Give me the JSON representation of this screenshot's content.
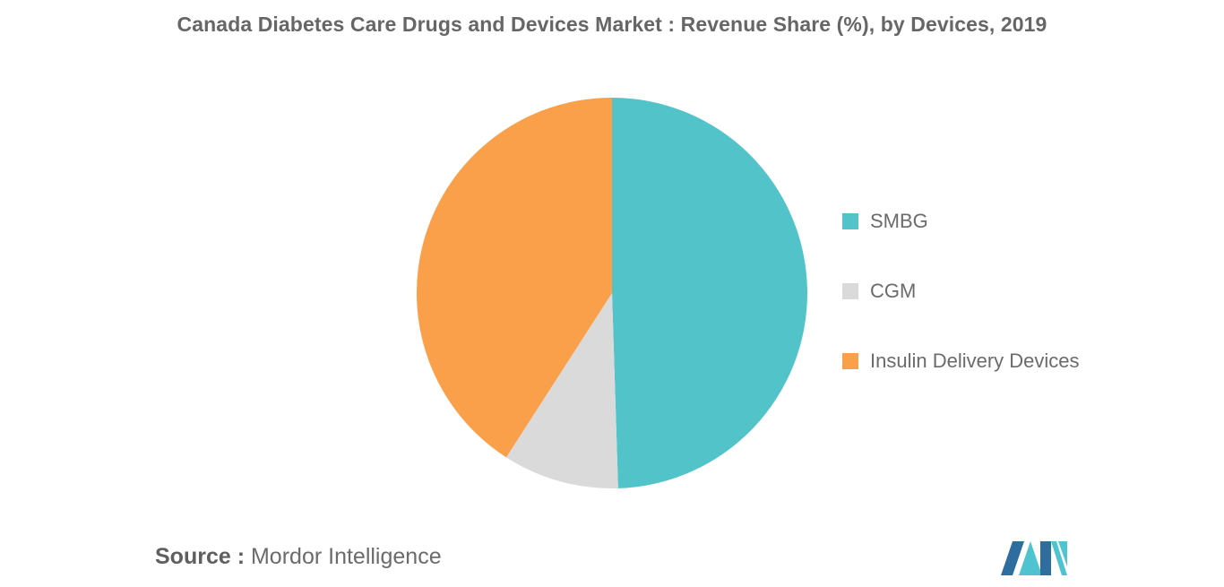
{
  "chart_data": {
    "type": "pie",
    "title": "Canada Diabetes Care Drugs and Devices Market : Revenue Share (%), by Devices, 2019",
    "slices": [
      {
        "name": "SMBG",
        "value": 49.5,
        "color": "#52C4C9"
      },
      {
        "name": "CGM",
        "value": 9.6,
        "color": "#DADADA"
      },
      {
        "name": "Insulin Delivery Devices",
        "value": 40.9,
        "color": "#FBA04A"
      }
    ],
    "legend_placement": "right",
    "start_angle_deg": 0,
    "direction": "clockwise"
  },
  "source": {
    "label": "Source :",
    "text": "Mordor Intelligence"
  },
  "logo": {
    "icon": "mordor-intelligence-logo",
    "colors": [
      "#2E6E9E",
      "#4FC3CF"
    ]
  }
}
